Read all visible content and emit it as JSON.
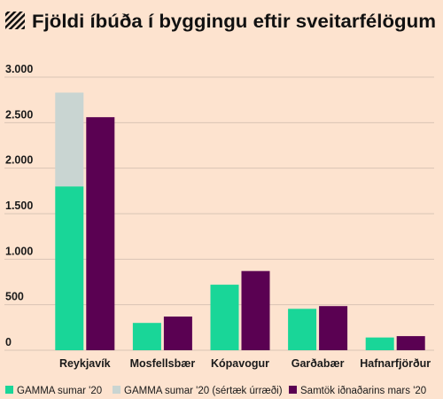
{
  "chart_data": {
    "type": "bar",
    "title": "Fjöldi íbúða í byggingu eftir sveitarfélögum",
    "categories": [
      "Reykjavík",
      "Mosfellsbær",
      "Kópavogur",
      "Garðabær",
      "Hafnarfjörður"
    ],
    "series": [
      {
        "name": "GAMMA sumar '20",
        "color": "#19d698",
        "values": [
          1800,
          300,
          720,
          455,
          140
        ]
      },
      {
        "name": "GAMMA sumar '20 (sértæk úrræði)",
        "color": "#c9d5d2",
        "values": [
          1030,
          null,
          null,
          null,
          null
        ]
      },
      {
        "name": "Samtök iðnaðarins mars '20",
        "color": "#5a0152",
        "values": [
          2560,
          370,
          870,
          485,
          155
        ]
      }
    ],
    "ylim": [
      0,
      3000
    ],
    "yticks": [
      0,
      500,
      {
        "value": 1000,
        "label": "1.000"
      },
      {
        "value": 1500,
        "label": "1.500"
      },
      {
        "value": 2000,
        "label": "2.000"
      },
      {
        "value": 2500,
        "label": "2.500"
      },
      {
        "value": 3000,
        "label": "3.000"
      }
    ],
    "grid": true
  }
}
